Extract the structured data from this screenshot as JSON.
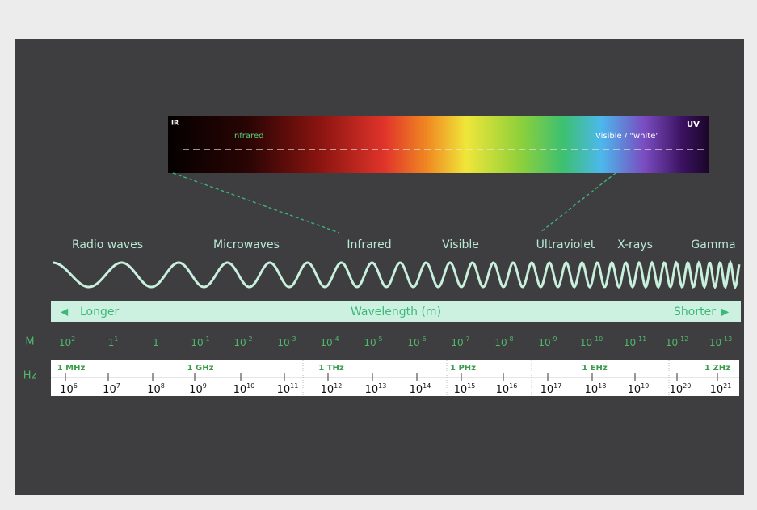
{
  "spectrum": {
    "ir": "IR",
    "infrared": "Infrared",
    "visible": "Visible / \"white\"",
    "uv": "UV"
  },
  "bands": [
    "Radio waves",
    "Microwaves",
    "Infrared",
    "Visible",
    "Ultraviolet",
    "X-rays",
    "Gamma"
  ],
  "wavelength_bar": {
    "left": "Longer",
    "center": "Wavelength (m)",
    "right": "Shorter"
  },
  "wavelength_row": {
    "unit": "M",
    "labels": [
      {
        "base": "10",
        "exp": "2"
      },
      {
        "base": "1",
        "exp": "1"
      },
      {
        "base": "1"
      },
      {
        "base": "10",
        "exp": "-1"
      },
      {
        "base": "10",
        "exp": "-2"
      },
      {
        "base": "10",
        "exp": "-3"
      },
      {
        "base": "10",
        "exp": "-4"
      },
      {
        "base": "10",
        "exp": "-5"
      },
      {
        "base": "10",
        "exp": "-6"
      },
      {
        "base": "10",
        "exp": "-7"
      },
      {
        "base": "10",
        "exp": "-8"
      },
      {
        "base": "10",
        "exp": "-9"
      },
      {
        "base": "10",
        "exp": "-10"
      },
      {
        "base": "10",
        "exp": "-11"
      },
      {
        "base": "10",
        "exp": "-12"
      },
      {
        "base": "10",
        "exp": "-13"
      }
    ]
  },
  "frequency_row": {
    "unit": "Hz",
    "named": [
      "1 MHz",
      "1 GHz",
      "1 THz",
      "1 PHz",
      "1 EHz",
      "1 ZHz"
    ],
    "labels": [
      {
        "base": "10",
        "exp": "6"
      },
      {
        "base": "10",
        "exp": "7"
      },
      {
        "base": "10",
        "exp": "8"
      },
      {
        "base": "10",
        "exp": "9"
      },
      {
        "base": "10",
        "exp": "10"
      },
      {
        "base": "10",
        "exp": "11"
      },
      {
        "base": "10",
        "exp": "12"
      },
      {
        "base": "10",
        "exp": "13"
      },
      {
        "base": "10",
        "exp": "14"
      },
      {
        "base": "10",
        "exp": "15"
      },
      {
        "base": "10",
        "exp": "16"
      },
      {
        "base": "10",
        "exp": "17"
      },
      {
        "base": "10",
        "exp": "18"
      },
      {
        "base": "10",
        "exp": "19"
      },
      {
        "base": "10",
        "exp": "20"
      },
      {
        "base": "10",
        "exp": "21"
      }
    ]
  }
}
